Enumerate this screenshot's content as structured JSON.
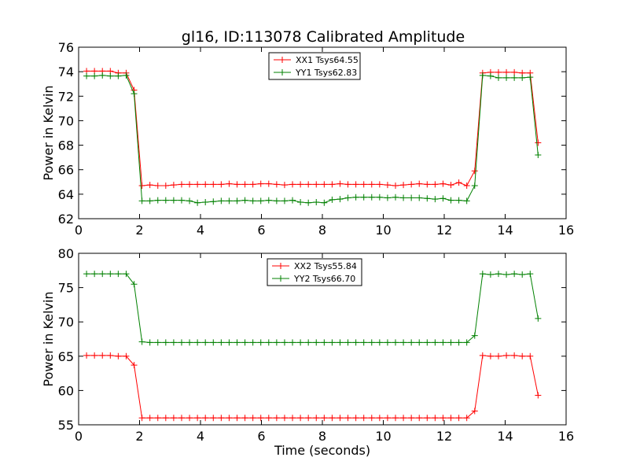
{
  "title": "gl16, ID:113078 Calibrated Amplitude",
  "chart_data": [
    {
      "type": "line",
      "ylabel": "Power in Kelvin",
      "xlabel": "",
      "xlim": [
        0,
        16
      ],
      "ylim": [
        62,
        76
      ],
      "xticks": [
        0,
        2,
        4,
        6,
        8,
        10,
        12,
        14,
        16
      ],
      "yticks": [
        62,
        64,
        66,
        68,
        70,
        72,
        74,
        76
      ],
      "legend": "top-center",
      "x": [
        0.26,
        0.52,
        0.78,
        1.04,
        1.3,
        1.56,
        1.82,
        2.08,
        2.34,
        2.6,
        2.86,
        3.12,
        3.38,
        3.64,
        3.9,
        4.16,
        4.42,
        4.68,
        4.94,
        5.2,
        5.46,
        5.72,
        5.98,
        6.24,
        6.5,
        6.76,
        7.02,
        7.28,
        7.54,
        7.8,
        8.06,
        8.32,
        8.58,
        8.84,
        9.1,
        9.36,
        9.62,
        9.88,
        10.14,
        10.4,
        10.66,
        10.92,
        11.18,
        11.44,
        11.7,
        11.96,
        12.22,
        12.48,
        12.74,
        13.0,
        13.26,
        13.52,
        13.78,
        14.04,
        14.3,
        14.56,
        14.82,
        15.08
      ],
      "series": [
        {
          "name": "XX1 Tsys64.55",
          "color": "#ff0000",
          "values": [
            74.05,
            74.05,
            74.05,
            74.05,
            73.9,
            73.9,
            72.5,
            64.7,
            64.75,
            64.7,
            64.7,
            64.75,
            64.8,
            64.8,
            64.8,
            64.8,
            64.8,
            64.8,
            64.85,
            64.8,
            64.8,
            64.8,
            64.85,
            64.85,
            64.8,
            64.75,
            64.8,
            64.8,
            64.8,
            64.8,
            64.8,
            64.8,
            64.85,
            64.8,
            64.8,
            64.8,
            64.8,
            64.8,
            64.75,
            64.7,
            64.75,
            64.8,
            64.85,
            64.8,
            64.8,
            64.85,
            64.75,
            64.95,
            64.7,
            65.9,
            73.9,
            73.95,
            73.95,
            73.95,
            73.95,
            73.9,
            73.9,
            68.2
          ]
        },
        {
          "name": "YY1 Tsys62.83",
          "color": "#008000",
          "values": [
            73.65,
            73.65,
            73.7,
            73.65,
            73.65,
            73.7,
            72.2,
            63.45,
            63.45,
            63.5,
            63.5,
            63.5,
            63.5,
            63.45,
            63.3,
            63.35,
            63.4,
            63.45,
            63.45,
            63.45,
            63.5,
            63.45,
            63.45,
            63.5,
            63.45,
            63.45,
            63.5,
            63.35,
            63.3,
            63.35,
            63.3,
            63.55,
            63.6,
            63.7,
            63.75,
            63.75,
            63.75,
            63.75,
            63.7,
            63.75,
            63.7,
            63.7,
            63.7,
            63.65,
            63.6,
            63.65,
            63.5,
            63.5,
            63.45,
            64.7,
            73.7,
            73.65,
            73.5,
            73.5,
            73.5,
            73.5,
            73.55,
            67.2
          ]
        }
      ]
    },
    {
      "type": "line",
      "ylabel": "Power in Kelvin",
      "xlabel": "Time (seconds)",
      "xlim": [
        0,
        16
      ],
      "ylim": [
        55,
        80
      ],
      "xticks": [
        0,
        2,
        4,
        6,
        8,
        10,
        12,
        14,
        16
      ],
      "yticks": [
        55,
        60,
        65,
        70,
        75,
        80
      ],
      "legend": "top-center",
      "x": [
        0.26,
        0.52,
        0.78,
        1.04,
        1.3,
        1.56,
        1.82,
        2.08,
        2.34,
        2.6,
        2.86,
        3.12,
        3.38,
        3.64,
        3.9,
        4.16,
        4.42,
        4.68,
        4.94,
        5.2,
        5.46,
        5.72,
        5.98,
        6.24,
        6.5,
        6.76,
        7.02,
        7.28,
        7.54,
        7.8,
        8.06,
        8.32,
        8.58,
        8.84,
        9.1,
        9.36,
        9.62,
        9.88,
        10.14,
        10.4,
        10.66,
        10.92,
        11.18,
        11.44,
        11.7,
        11.96,
        12.22,
        12.48,
        12.74,
        13.0,
        13.26,
        13.52,
        13.78,
        14.04,
        14.3,
        14.56,
        14.82,
        15.08
      ],
      "series": [
        {
          "name": "XX2 Tsys55.84",
          "color": "#ff0000",
          "values": [
            65.1,
            65.1,
            65.1,
            65.1,
            65.0,
            65.0,
            63.7,
            56.0,
            56.0,
            56.0,
            56.0,
            56.0,
            56.0,
            56.0,
            56.0,
            56.0,
            56.0,
            56.0,
            56.0,
            56.0,
            56.0,
            56.0,
            56.0,
            56.0,
            56.0,
            56.0,
            56.0,
            56.0,
            56.0,
            56.0,
            56.0,
            56.0,
            56.0,
            56.0,
            56.0,
            56.0,
            56.0,
            56.0,
            56.0,
            56.0,
            56.0,
            56.0,
            56.0,
            56.0,
            56.0,
            56.0,
            56.0,
            56.0,
            56.0,
            57.0,
            65.1,
            65.0,
            65.0,
            65.1,
            65.1,
            65.0,
            65.0,
            59.3
          ]
        },
        {
          "name": "YY2 Tsys66.70",
          "color": "#008000",
          "values": [
            77.0,
            77.0,
            77.0,
            77.0,
            77.0,
            77.0,
            75.5,
            67.1,
            67.0,
            67.0,
            67.0,
            67.0,
            67.0,
            67.0,
            67.0,
            67.0,
            67.0,
            67.0,
            67.0,
            67.0,
            67.0,
            67.0,
            67.0,
            67.0,
            67.0,
            67.0,
            67.0,
            67.0,
            67.0,
            67.0,
            67.0,
            67.0,
            67.0,
            67.0,
            67.0,
            67.0,
            67.0,
            67.0,
            67.0,
            67.0,
            67.0,
            67.0,
            67.0,
            67.0,
            67.0,
            67.0,
            67.0,
            67.0,
            67.0,
            68.0,
            77.0,
            76.9,
            77.0,
            76.9,
            77.0,
            76.9,
            77.0,
            70.5
          ]
        }
      ]
    }
  ]
}
